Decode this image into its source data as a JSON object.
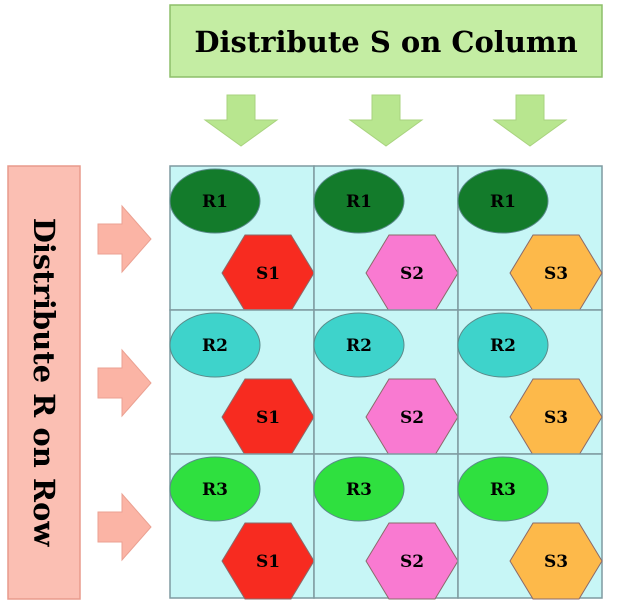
{
  "column_banner": {
    "label": "Distribute S on Column",
    "fill": "#c4eda3",
    "stroke": "#8dbf6a"
  },
  "row_banner": {
    "label": "Distribute R on Row",
    "fill": "#fbbfb3",
    "stroke": "#e89a8c"
  },
  "arrow_colors": {
    "down": "#b8e68f",
    "right": "#fbb4a5"
  },
  "grid": {
    "cell_fill": "#c7f6f6",
    "line_color": "#7f9aa0",
    "rows": [
      {
        "r_label": "R1",
        "r_color": "#137b2b"
      },
      {
        "r_label": "R2",
        "r_color": "#3ed3cb"
      },
      {
        "r_label": "R3",
        "r_color": "#2fe03f"
      }
    ],
    "columns": [
      {
        "s_label": "S1",
        "s_color": "#f72b20"
      },
      {
        "s_label": "S2",
        "s_color": "#f97ad1"
      },
      {
        "s_label": "S3",
        "s_color": "#fdb94a"
      }
    ]
  }
}
